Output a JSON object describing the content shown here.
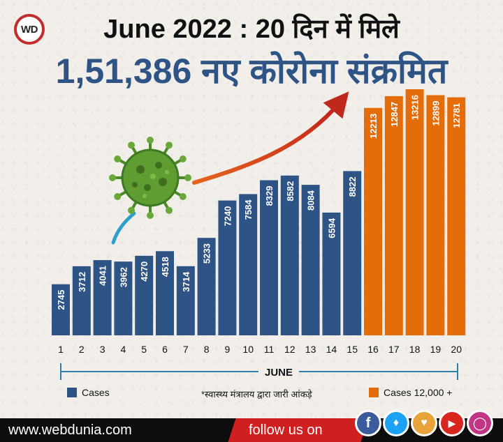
{
  "brand": {
    "logo_text": "WD",
    "site": "www.webdunia.com",
    "follow": "follow us on"
  },
  "headline": {
    "line1": "June 2022 : 20 दिन में मिले",
    "line2": "1,51,386 नए कोरोना संक्रमित"
  },
  "social_icons": [
    "facebook-icon",
    "twitter-icon",
    "app-icon",
    "youtube-icon",
    "instagram-icon"
  ],
  "colors": {
    "cases": "#2e5486",
    "cases_high": "#e46d0a",
    "footer": "#0d0d0d",
    "follow_bg": "#cf1f1f"
  },
  "chart_data": {
    "type": "bar",
    "categories": [
      "1",
      "2",
      "3",
      "4",
      "5",
      "6",
      "7",
      "8",
      "9",
      "10",
      "11",
      "12",
      "13",
      "14",
      "15",
      "16",
      "17",
      "18",
      "19",
      "20"
    ],
    "values": [
      2745,
      3712,
      4041,
      3962,
      4270,
      4518,
      3714,
      5233,
      7240,
      7584,
      8329,
      8582,
      8084,
      6594,
      8822,
      12213,
      12847,
      13216,
      12899,
      12781
    ],
    "threshold": 12000,
    "xlabel": "JUNE",
    "ylim": [
      0,
      13216
    ],
    "legend": [
      {
        "label": "Cases",
        "color": "#2e5486"
      },
      {
        "label": "Cases 12,000 +",
        "color": "#e46d0a"
      }
    ],
    "source_note": "*स्वास्थ्य मंत्रालय द्वारा जारी आंकड़े"
  }
}
